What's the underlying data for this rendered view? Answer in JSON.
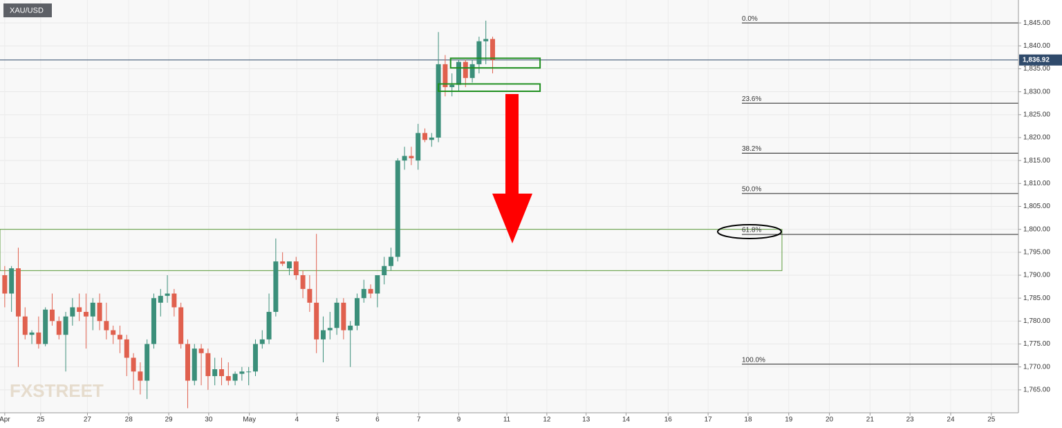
{
  "chart_data": {
    "type": "candlestick",
    "symbol": "XAU/USD",
    "x": [
      0,
      1,
      2,
      3,
      4,
      5,
      6,
      7,
      8,
      9,
      10,
      11,
      12,
      13,
      14,
      15,
      16,
      17,
      18,
      19,
      20,
      21,
      22,
      23,
      24,
      25,
      26,
      27,
      28,
      29,
      30,
      31,
      32,
      33,
      34,
      35,
      36,
      37,
      38,
      39,
      40,
      41,
      42,
      43,
      44,
      45,
      46,
      47,
      48,
      49,
      50,
      51,
      52,
      53,
      54,
      55,
      56,
      57,
      58,
      59,
      60,
      61,
      62,
      63,
      64,
      65,
      66,
      67,
      68,
      69,
      70,
      71,
      72
    ],
    "open": [
      1790,
      1786,
      1791.5,
      1781,
      1777,
      1777.5,
      1775,
      1782.5,
      1780,
      1777,
      1781,
      1783,
      1782,
      1781,
      1784,
      1780,
      1778,
      1777,
      1776,
      1772,
      1769,
      1767,
      1775,
      1784,
      1785.5,
      1786,
      1783,
      1775,
      1767,
      1774,
      1773,
      1768,
      1769.5,
      1768,
      1767,
      1768.5,
      1769,
      1769,
      1775,
      1776,
      1782,
      1793,
      1791.5,
      1793,
      1790,
      1787,
      1784,
      1776,
      1778,
      1778.5,
      1784,
      1778,
      1779,
      1785,
      1787,
      1786,
      1790,
      1792,
      1794,
      1815,
      1816,
      1815,
      1821,
      1819.5,
      1820,
      1836,
      1831,
      1831.5,
      1836.5,
      1833,
      1836,
      1841,
      1841.5
    ],
    "high": [
      1792,
      1792,
      1796,
      1783,
      1778,
      1781,
      1783,
      1786,
      1781,
      1782,
      1785,
      1786,
      1786,
      1785,
      1786,
      1784,
      1779,
      1779,
      1777,
      1773,
      1771,
      1776,
      1786,
      1787,
      1790,
      1787,
      1784,
      1776,
      1775,
      1775,
      1774,
      1772,
      1772,
      1771,
      1769,
      1770,
      1770,
      1776,
      1778,
      1786,
      1798,
      1795,
      1793,
      1794,
      1791,
      1790,
      1799,
      1781,
      1782,
      1785,
      1785,
      1780,
      1786,
      1789,
      1788,
      1790,
      1794,
      1796,
      1815.5,
      1818,
      1818,
      1823,
      1822,
      1821,
      1843,
      1838,
      1834,
      1837,
      1837,
      1837,
      1842,
      1845.5,
      1842
    ],
    "low": [
      1783,
      1782,
      1770,
      1776,
      1775,
      1774,
      1774.5,
      1779,
      1776,
      1769,
      1779,
      1780,
      1774,
      1778,
      1778,
      1776,
      1775,
      1773,
      1768,
      1765,
      1764,
      1763,
      1774,
      1781,
      1784,
      1781,
      1774,
      1761,
      1766,
      1766,
      1765,
      1766,
      1766,
      1766,
      1766,
      1767,
      1766,
      1768,
      1774,
      1775,
      1781,
      1792,
      1790,
      1789,
      1785,
      1782,
      1773,
      1771,
      1776,
      1777,
      1776,
      1770,
      1778,
      1784,
      1785,
      1783,
      1788,
      1791,
      1793,
      1813,
      1814,
      1813,
      1819,
      1818,
      1819,
      1829,
      1829,
      1830,
      1831,
      1832,
      1834,
      1836,
      1834
    ],
    "close": [
      1786,
      1791.5,
      1781,
      1777,
      1777.5,
      1775,
      1782.5,
      1780,
      1777,
      1781,
      1783,
      1782,
      1781,
      1784,
      1780,
      1778,
      1777,
      1776,
      1772,
      1769,
      1767,
      1775,
      1785,
      1785.5,
      1786,
      1783,
      1775,
      1767,
      1774,
      1773,
      1768,
      1769.5,
      1768,
      1767,
      1768.5,
      1769,
      1769,
      1775,
      1776,
      1782,
      1793,
      1792.5,
      1793,
      1790,
      1787,
      1784,
      1776,
      1778,
      1778.5,
      1784,
      1778,
      1779,
      1785,
      1787,
      1786,
      1790,
      1792,
      1794,
      1815,
      1816,
      1815.5,
      1821,
      1819.5,
      1820,
      1836,
      1831,
      1831.5,
      1836.5,
      1833,
      1836,
      1841,
      1841.5,
      1836.92
    ],
    "up_color": "#3b8f7a",
    "down_color": "#e0604e",
    "xlim": [
      -0.7,
      149.6
    ],
    "xticks": [
      {
        "value": 0,
        "label": "Apr"
      },
      {
        "value": 5.3,
        "label": "25"
      },
      {
        "value": 12.2,
        "label": "27"
      },
      {
        "value": 18.3,
        "label": "28"
      },
      {
        "value": 24.2,
        "label": "29"
      },
      {
        "value": 30.1,
        "label": "30"
      },
      {
        "value": 36.1,
        "label": "May"
      },
      {
        "value": 43.1,
        "label": "4"
      },
      {
        "value": 49.1,
        "label": "5"
      },
      {
        "value": 55,
        "label": "6"
      },
      {
        "value": 61.1,
        "label": "7"
      },
      {
        "value": 67,
        "label": "9"
      },
      {
        "value": 74.1,
        "label": "11"
      },
      {
        "value": 80,
        "label": "12"
      },
      {
        "value": 85.8,
        "label": "13"
      },
      {
        "value": 91.7,
        "label": "14"
      },
      {
        "value": 97.9,
        "label": "16"
      },
      {
        "value": 103.8,
        "label": "17"
      },
      {
        "value": 109.7,
        "label": "18"
      },
      {
        "value": 115.7,
        "label": "19"
      },
      {
        "value": 121.7,
        "label": "20"
      },
      {
        "value": 127.7,
        "label": "21"
      },
      {
        "value": 133.6,
        "label": "23"
      },
      {
        "value": 139.6,
        "label": "24"
      },
      {
        "value": 145.6,
        "label": "25"
      }
    ],
    "ylim": [
      1760,
      1850
    ],
    "yticks": [
      {
        "value": 1765,
        "label": "1,765.00"
      },
      {
        "value": 1770,
        "label": "1,770.00"
      },
      {
        "value": 1775,
        "label": "1,775.00"
      },
      {
        "value": 1780,
        "label": "1,780.00"
      },
      {
        "value": 1785,
        "label": "1,785.00"
      },
      {
        "value": 1790,
        "label": "1,790.00"
      },
      {
        "value": 1795,
        "label": "1,795.00"
      },
      {
        "value": 1800,
        "label": "1,800.00"
      },
      {
        "value": 1805,
        "label": "1,805.00"
      },
      {
        "value": 1810,
        "label": "1,810.00"
      },
      {
        "value": 1815,
        "label": "1,815.00"
      },
      {
        "value": 1820,
        "label": "1,820.00"
      },
      {
        "value": 1825,
        "label": "1,825.00"
      },
      {
        "value": 1830,
        "label": "1,830.00"
      },
      {
        "value": 1835,
        "label": "1,835.00"
      },
      {
        "value": 1840,
        "label": "1,840.00"
      },
      {
        "value": 1845,
        "label": "1,845.00"
      }
    ],
    "grid": true,
    "last_price": {
      "value": 1836.92,
      "label": "1,836.92"
    },
    "fib_levels": [
      {
        "label": "0.0%",
        "value": 1845
      },
      {
        "label": "23.6%",
        "value": 1827.5
      },
      {
        "label": "38.2%",
        "value": 1816.6
      },
      {
        "label": "50.0%",
        "value": 1807.8
      },
      {
        "label": "61.8%",
        "value": 1798.9
      },
      {
        "label": "100.0%",
        "value": 1770.6
      }
    ],
    "zone": {
      "x": [
        -0.7,
        114.7
      ],
      "y": [
        1791,
        1800
      ]
    },
    "boxes": [
      {
        "x": [
          65.8,
          79
        ],
        "y": [
          1835.2,
          1837.3
        ]
      },
      {
        "x": [
          64,
          79
        ],
        "y": [
          1830.1,
          1831.7
        ]
      }
    ],
    "watermark": "FXSTREET"
  }
}
